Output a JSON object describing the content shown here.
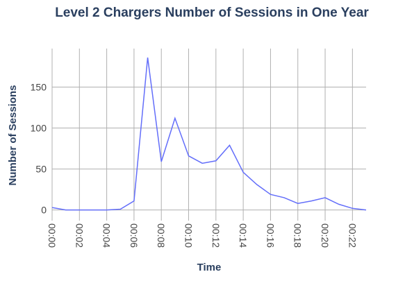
{
  "chart_data": {
    "type": "line",
    "title": "Level 2 Chargers Number of Sessions in One Year",
    "x_label": "Time",
    "y_label": "Number of Sessions",
    "x": [
      0,
      1,
      2,
      3,
      4,
      5,
      6,
      7,
      8,
      9,
      10,
      11,
      12,
      13,
      14,
      15,
      16,
      17,
      18,
      19,
      20,
      21,
      22,
      23
    ],
    "series": [
      {
        "name": "Sessions",
        "color": "#636efa",
        "values": [
          3,
          0,
          0,
          0,
          0,
          1,
          11,
          186,
          59,
          112,
          66,
          57,
          60,
          79,
          46,
          31,
          19,
          15,
          8,
          11,
          15,
          7,
          2,
          0
        ]
      }
    ],
    "xlim": [
      0,
      23
    ],
    "xticks": [
      {
        "value": 0,
        "label": "00:00"
      },
      {
        "value": 2,
        "label": "00:02"
      },
      {
        "value": 4,
        "label": "00:04"
      },
      {
        "value": 6,
        "label": "00:06"
      },
      {
        "value": 8,
        "label": "00:08"
      },
      {
        "value": 10,
        "label": "00:10"
      },
      {
        "value": 12,
        "label": "00:12"
      },
      {
        "value": 14,
        "label": "00:14"
      },
      {
        "value": 16,
        "label": "00:16"
      },
      {
        "value": 18,
        "label": "00:18"
      },
      {
        "value": 20,
        "label": "00:20"
      },
      {
        "value": 22,
        "label": "00:22"
      }
    ],
    "ylim": [
      -13,
      197
    ],
    "yticks": [
      0,
      50,
      100,
      150
    ],
    "grid": true
  }
}
